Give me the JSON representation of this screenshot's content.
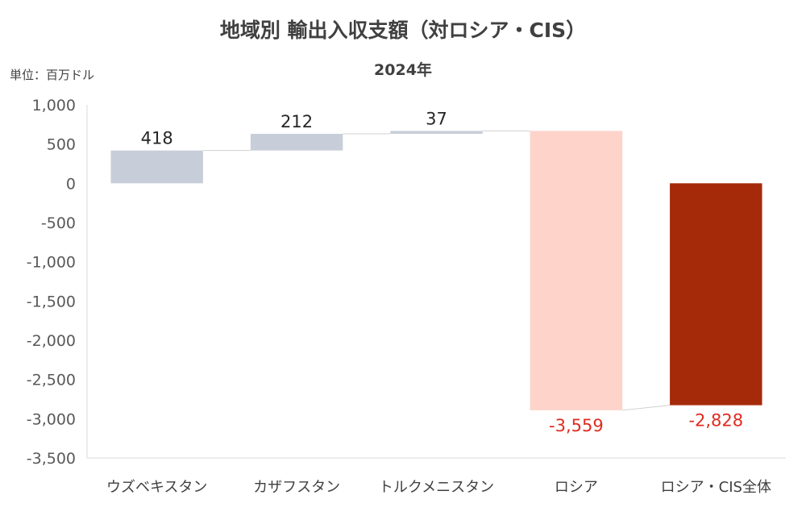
{
  "chart_data": {
    "type": "bar",
    "subtype": "waterfall",
    "title": "地域別 輸出入収支額（対ロシア・CIS）",
    "subtitle": "2024年",
    "unit_label": "単位：百万ドル",
    "categories": [
      "ウズベキスタン",
      "カザフスタン",
      "トルクメニスタン",
      "ロシア",
      "ロシア・CIS全体"
    ],
    "values": [
      418,
      212,
      37,
      -3559,
      -2828
    ],
    "value_labels": [
      "418",
      "212",
      "37",
      "-3,559",
      "-2,828"
    ],
    "is_total": [
      false,
      false,
      false,
      false,
      true
    ],
    "ylim": [
      -3500,
      1000
    ],
    "yticks": [
      1000,
      500,
      0,
      -500,
      -1000,
      -1500,
      -2000,
      -2500,
      -3000,
      -3500
    ],
    "ytick_labels": [
      "1,000",
      "500",
      "0",
      "-500",
      "-1,000",
      "-1,500",
      "-2,000",
      "-2,500",
      "-3,000",
      "-3,500"
    ],
    "grid": false,
    "colors": {
      "increase": "#c8ced9",
      "decrease": "#fdd3ca",
      "total": "#a52a0a",
      "label_positive": "#262626",
      "label_negative": "#e02b20",
      "connector": "#d0d0d0",
      "axis": "#d9d9d9"
    }
  }
}
